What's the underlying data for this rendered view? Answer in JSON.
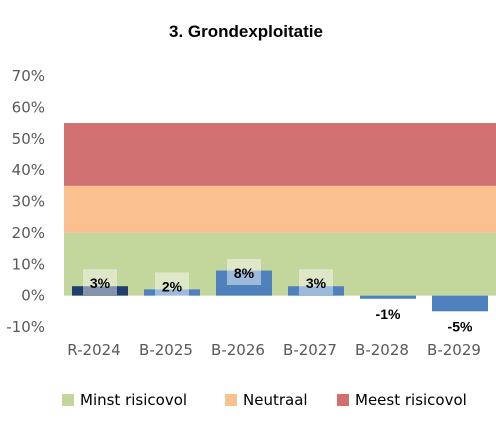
{
  "chart_data": {
    "type": "bar",
    "title": "3. Grondexploitatie",
    "xlabel": "",
    "ylabel": "",
    "categories": [
      "R-2024",
      "B-2025",
      "B-2026",
      "B-2027",
      "B-2028",
      "B-2029"
    ],
    "values": [
      3,
      2,
      8,
      3,
      -1,
      -5
    ],
    "data_labels": [
      "3%",
      "2%",
      "8%",
      "3%",
      "-1%",
      "-5%"
    ],
    "ylim": [
      -10,
      70
    ],
    "yticks": [
      -10,
      0,
      10,
      20,
      30,
      40,
      50,
      60,
      70
    ],
    "ytick_labels": [
      "-10%",
      "0%",
      "10%",
      "20%",
      "30%",
      "40%",
      "50%",
      "60%",
      "70%"
    ],
    "bar_colors": [
      "#1f3d6e",
      "#4f81bd",
      "#4f81bd",
      "#4f81bd",
      "#4f81bd",
      "#4f81bd"
    ],
    "bands": [
      {
        "name": "Minst risicovol",
        "from": 0,
        "to": 20,
        "color": "#c3d69b"
      },
      {
        "name": "Neutraal",
        "from": 20,
        "to": 35,
        "color": "#fac090"
      },
      {
        "name": "Meest risicovol",
        "from": 35,
        "to": 55,
        "color": "#d07070"
      }
    ],
    "grid": false,
    "legend_position": "bottom"
  }
}
